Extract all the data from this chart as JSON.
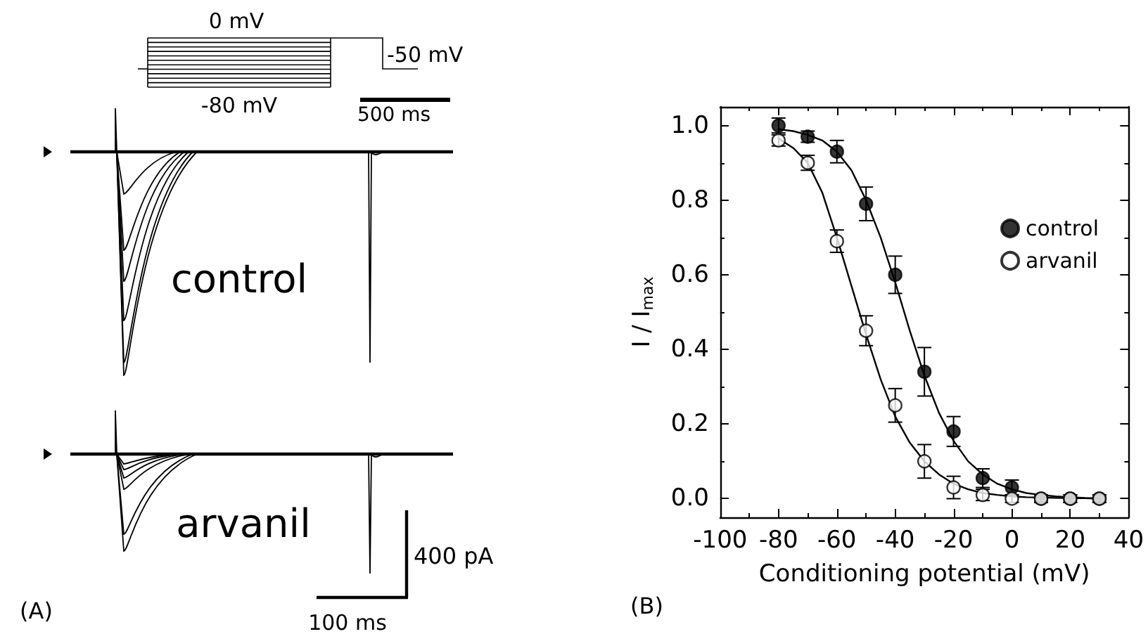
{
  "chart_data": [
    {
      "type": "other",
      "annotations": [
        "0 mV",
        "-50 mV",
        "-80 mV",
        "500 ms",
        "control",
        "arvanil",
        "400 pA",
        "100 ms",
        "(A)"
      ]
    },
    {
      "type": "scatter",
      "xlabel": "Conditioning potential (mV)",
      "ylabel": "I / I$_{max}$",
      "annotations": [
        "(B)"
      ],
      "xlim": [
        -100,
        40
      ],
      "xticks": [
        -100,
        -80,
        -60,
        -40,
        -20,
        0,
        20,
        40
      ],
      "ylim": [
        -0.05,
        1.05
      ],
      "yticks": [
        {
          "value": 0,
          "label": "0.0"
        },
        0.2,
        0.4,
        0.6,
        0.8,
        {
          "value": 1,
          "label": "1.0"
        }
      ],
      "grid": false,
      "legend": "right",
      "series": [
        {
          "name": "control",
          "color": "#000000",
          "marker": "circle",
          "x": [
            -80,
            -70,
            -60,
            -50,
            -40,
            -30,
            -20,
            -10,
            0,
            10,
            20,
            30
          ],
          "values": [
            1.0,
            0.97,
            0.93,
            0.79,
            0.6,
            0.34,
            0.18,
            0.055,
            0.03,
            0.0,
            0.0,
            0.0
          ],
          "errors": [
            0.02,
            0.015,
            0.03,
            0.045,
            0.05,
            0.065,
            0.04,
            0.025,
            0.02,
            0.01,
            0.01,
            0.01
          ]
        },
        {
          "name": "arvanil",
          "color": "#ffffff",
          "marker": "circle",
          "x": [
            -80,
            -70,
            -60,
            -50,
            -40,
            -30,
            -20,
            -10,
            0,
            10,
            20,
            30
          ],
          "values": [
            0.96,
            0.9,
            0.69,
            0.45,
            0.25,
            0.1,
            0.03,
            0.01,
            0.0,
            0.0,
            0.0,
            0.0
          ],
          "errors": [
            0.015,
            0.02,
            0.03,
            0.04,
            0.045,
            0.045,
            0.03,
            0.015,
            0.01,
            0.01,
            0.01,
            0.01
          ]
        },
        {
          "type": "line",
          "color": "#000000",
          "marker": "none",
          "line_style": "solid",
          "x": [
            -80,
            -75,
            -70,
            -65,
            -60,
            -55,
            -50,
            -45,
            -40,
            -35,
            -30,
            -25,
            -20,
            -15,
            -10,
            -5,
            0,
            5,
            10,
            15,
            20,
            25,
            30
          ],
          "values": [
            0.99,
            0.985,
            0.975,
            0.96,
            0.93,
            0.88,
            0.8,
            0.7,
            0.58,
            0.45,
            0.33,
            0.23,
            0.155,
            0.1,
            0.065,
            0.04,
            0.025,
            0.015,
            0.01,
            0.006,
            0.004,
            0.002,
            0.001
          ]
        },
        {
          "type": "line",
          "color": "#000000",
          "marker": "none",
          "line_style": "solid",
          "x": [
            -80,
            -75,
            -70,
            -65,
            -60,
            -55,
            -50,
            -45,
            -40,
            -35,
            -30,
            -25,
            -20,
            -15,
            -10,
            -5,
            0,
            5,
            10,
            15,
            20,
            25,
            30
          ],
          "values": [
            0.965,
            0.94,
            0.9,
            0.82,
            0.7,
            0.57,
            0.44,
            0.32,
            0.22,
            0.15,
            0.1,
            0.065,
            0.04,
            0.025,
            0.015,
            0.01,
            0.006,
            0.004,
            0.003,
            0.002,
            0.001,
            0.001,
            0.0
          ]
        }
      ]
    }
  ]
}
